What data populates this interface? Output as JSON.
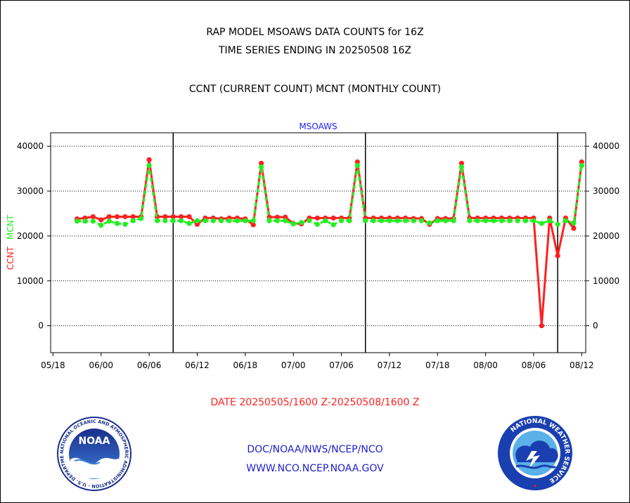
{
  "titles": {
    "line1": "RAP MODEL MSOAWS DATA COUNTS for 16Z",
    "line2": "TIME SERIES ENDING IN 20250508 16Z",
    "line3": "CCNT (CURRENT COUNT) MCNT (MONTHLY COUNT)"
  },
  "footer": {
    "date_range": "DATE 20250505/1600 Z-20250508/1600 Z",
    "org": "DOC/NOAA/NWS/NCEP/NCO",
    "web": "WWW.NCO.NCEP.NOAA.GOV"
  },
  "logos": {
    "left": {
      "icon": "noaa-logo-icon",
      "center_text": "NOAA",
      "ring_text": "NATIONAL OCEANIC AND ATMOSPHERIC ADMINISTRATION · U.S. DEPARTMENT OF COMMERCE"
    },
    "right": {
      "icon": "nws-logo-icon",
      "ring_text": "NATIONAL WEATHER SERVICE"
    }
  },
  "colors": {
    "ccnt": "#ff2020",
    "mcnt": "#22ee22",
    "title_blue": "#2020ff",
    "date_red": "#ff2020",
    "footer_blue": "#2020cc"
  },
  "chart_data": {
    "type": "line",
    "title": "MSOAWS",
    "ylabel_left": [
      "CCNT",
      "MCNT"
    ],
    "ylim": [
      -6000,
      43000
    ],
    "yticks": [
      0,
      10000,
      20000,
      30000,
      40000
    ],
    "ytick_labels": [
      "0",
      "10000",
      "20000",
      "30000",
      "40000"
    ],
    "xlim": [
      -3.3,
      63.5
    ],
    "xticks": [
      0,
      6,
      12,
      18,
      24,
      30,
      36,
      42,
      48,
      54,
      60
    ],
    "xtick_labels": [
      "05/18",
      "06/00",
      "06/06",
      "06/12",
      "06/18",
      "07/00",
      "07/06",
      "07/12",
      "07/18",
      "08/00",
      "08/06",
      "08/12"
    ],
    "xtick_values": [
      -3,
      3,
      9,
      15,
      21,
      27,
      33,
      39,
      45,
      51,
      57,
      63
    ],
    "vertical_lines": [
      12,
      36,
      60
    ],
    "grid": "horizontal-dotted",
    "x": [
      0,
      1,
      2,
      3,
      4,
      5,
      6,
      7,
      8,
      9,
      10,
      11,
      12,
      13,
      14,
      15,
      16,
      17,
      18,
      19,
      20,
      21,
      22,
      23,
      24,
      25,
      26,
      27,
      28,
      29,
      30,
      31,
      32,
      33,
      34,
      35,
      36,
      37,
      38,
      39,
      40,
      41,
      42,
      43,
      44,
      45,
      46,
      47,
      48,
      49,
      50,
      51,
      52,
      53,
      54,
      55,
      56,
      57,
      58,
      59,
      60,
      61,
      62,
      63
    ],
    "series": [
      {
        "name": "CCNT",
        "values": [
          23800,
          24000,
          24300,
          23600,
          24300,
          24300,
          24300,
          24300,
          24300,
          37000,
          24300,
          24300,
          24300,
          24300,
          24300,
          22600,
          24000,
          24000,
          23800,
          24000,
          24000,
          23800,
          22500,
          36200,
          24200,
          24200,
          24200,
          22800,
          22700,
          24000,
          24000,
          24000,
          24000,
          24000,
          24000,
          36500,
          24000,
          24000,
          24000,
          24000,
          24000,
          24000,
          23900,
          23900,
          22600,
          23900,
          23900,
          23900,
          36200,
          24000,
          24000,
          24000,
          24000,
          24000,
          24000,
          24000,
          24000,
          24000,
          0,
          24000,
          15600,
          24000,
          21700,
          36500
        ]
      },
      {
        "name": "MCNT",
        "values": [
          23300,
          23300,
          23300,
          22400,
          23300,
          22800,
          22600,
          23400,
          23900,
          35700,
          23400,
          23400,
          23400,
          23400,
          22800,
          23400,
          23400,
          23400,
          23400,
          23400,
          23400,
          23400,
          23400,
          35400,
          23400,
          23400,
          23400,
          22700,
          23000,
          23400,
          22600,
          23400,
          22500,
          23400,
          23400,
          35700,
          23400,
          23400,
          23400,
          23400,
          23400,
          23400,
          23400,
          23400,
          22900,
          23400,
          23400,
          23400,
          35400,
          23400,
          23400,
          23400,
          23400,
          23400,
          23400,
          23400,
          23400,
          23400,
          22800,
          23400,
          22600,
          23400,
          22900,
          35700
        ]
      }
    ]
  }
}
